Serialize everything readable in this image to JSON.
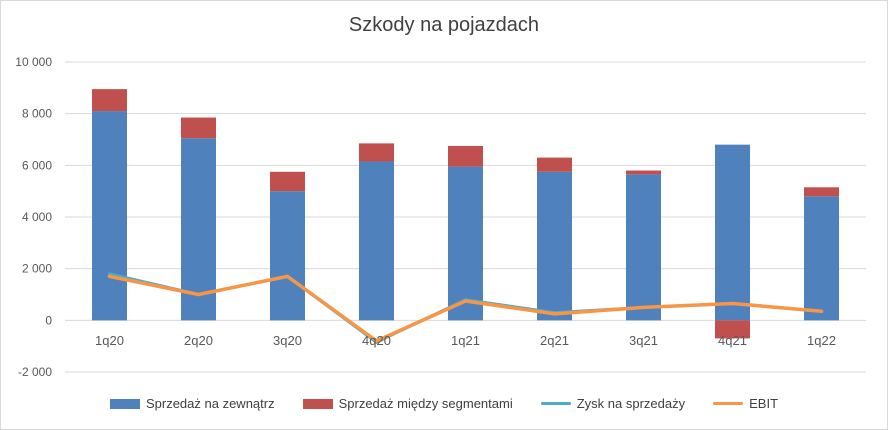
{
  "chart_data": {
    "type": "bar",
    "title": "Szkody na pojazdach",
    "categories": [
      "1q20",
      "2q20",
      "3q20",
      "4q20",
      "1q21",
      "2q21",
      "3q21",
      "4q21",
      "1q22"
    ],
    "ylim": [
      -2000,
      10000
    ],
    "yticks": [
      -2000,
      0,
      2000,
      4000,
      6000,
      8000,
      10000
    ],
    "ytick_labels": [
      "-2 000",
      "0",
      "2 000",
      "4 000",
      "6 000",
      "8 000",
      "10 000"
    ],
    "grid": true,
    "legend_position": "bottom",
    "series": [
      {
        "name": "Sprzedaż na zewnątrz",
        "kind": "bar-stacked",
        "color": "#4f81bd",
        "values": [
          8100,
          7050,
          5000,
          6150,
          5950,
          5750,
          5650,
          6800,
          4800
        ]
      },
      {
        "name": "Sprzedaż między segmentami",
        "kind": "bar-stacked",
        "color": "#c0504d",
        "values": [
          850,
          800,
          750,
          700,
          800,
          550,
          150,
          -700,
          350
        ]
      },
      {
        "name": "Zysk na sprzedaży",
        "kind": "line",
        "color": "#4bacc6",
        "values": [
          1800,
          1000,
          1700,
          -850,
          800,
          300,
          500,
          650,
          350
        ]
      },
      {
        "name": "EBIT",
        "kind": "line",
        "color": "#f79646",
        "values": [
          1700,
          1000,
          1700,
          -800,
          750,
          250,
          500,
          650,
          350
        ]
      }
    ]
  }
}
